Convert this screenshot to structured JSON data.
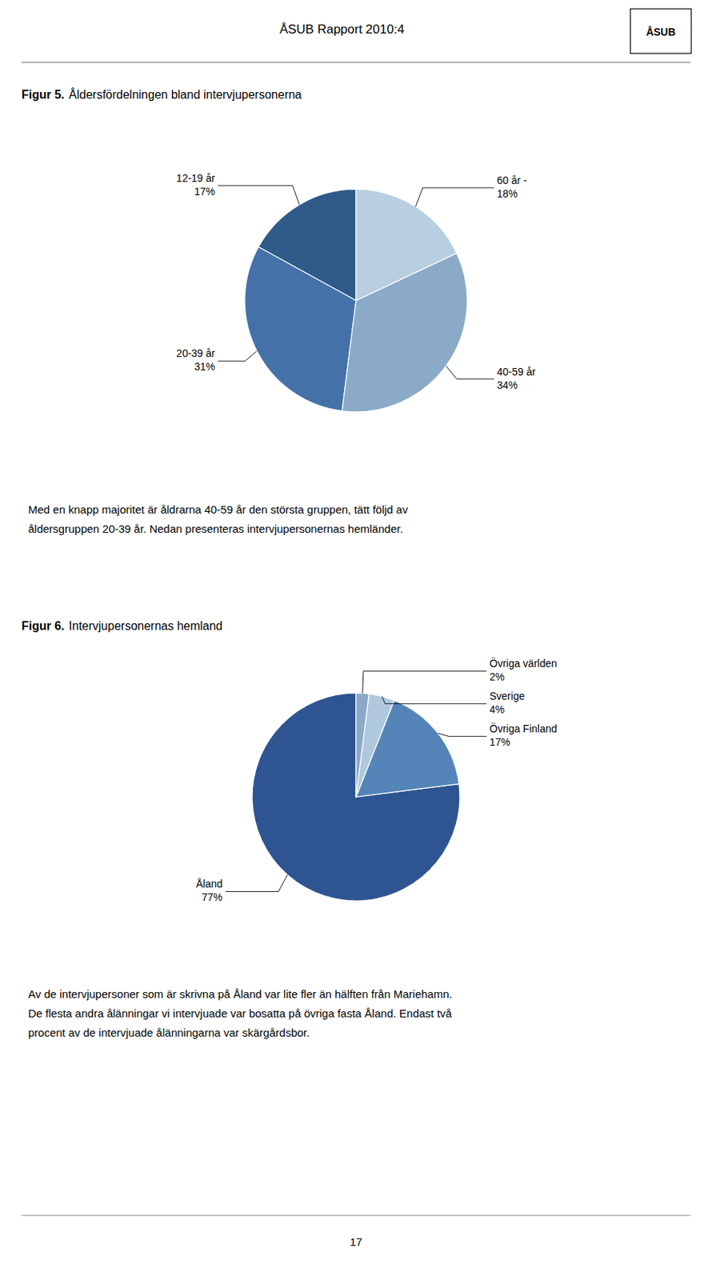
{
  "page_title": "ÅSUB Rapport 2010:4",
  "logo_text": "ÅSUB",
  "footer_text": "17",
  "chart_data": [
    {
      "type": "pie",
      "title": "Figur 5.",
      "subtitle": "Åldersfördelningen bland intervjupersonerna",
      "categories": [
        "12-19 år",
        "20-39 år",
        "40-59 år",
        "60 år -"
      ],
      "values": [
        17,
        31,
        34,
        18
      ],
      "value_labels": [
        "17%",
        "31%",
        "34%",
        "18%"
      ],
      "data_labels": true,
      "colors": [
        "#2e5b8a",
        "#4472a8",
        "#8aaac8",
        "#b8cfe0"
      ],
      "annotations": [
        "Med en knapp majoritet är åldrarna 40-59 år den största gruppen, tätt följd av\nåldersgruppen 20-39 år. Nedan presenteras intervjupersonernas hemländer."
      ]
    },
    {
      "type": "pie",
      "title": "Figur 6.",
      "subtitle": "Intervjupersonernas hemland",
      "categories": [
        "Åland",
        "Övriga Finland",
        "Sverige",
        "Övriga världen"
      ],
      "values": [
        77,
        17,
        4,
        2
      ],
      "value_labels": [
        "77%",
        "17%",
        "4%",
        "2%"
      ],
      "data_labels": true,
      "colors": [
        "#2e5591",
        "#5585b8",
        "#b0c8de",
        "#8aaac8"
      ],
      "annotations": [
        "Av de intervjupersoner som är skrivna på Åland var lite fler än hälften från Mariehamn.\nDe flesta andra ålänningar vi intervjuade var bosatta på övriga fasta Åland. Endast två\nprocent av de intervjuade ålänningarna var skärgårdsbor."
      ]
    }
  ]
}
